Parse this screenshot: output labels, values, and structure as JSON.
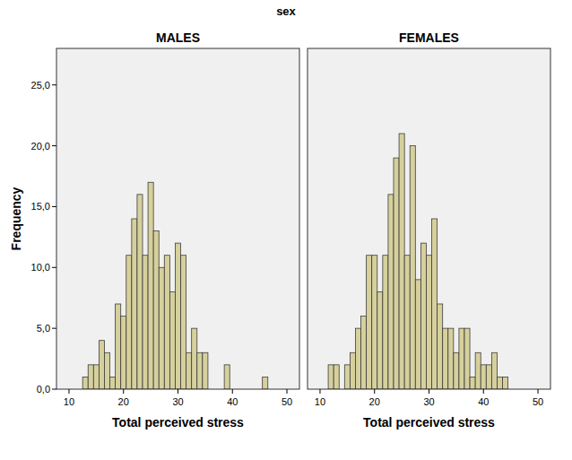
{
  "chart_data": {
    "type": "histogram",
    "title": "sex",
    "y_label": "Frequency",
    "x_label": "Total perceived stress",
    "color": "#d6d09c",
    "xlim": [
      7.7,
      52.3
    ],
    "ylim": [
      0,
      28
    ],
    "xticks": [
      10,
      20,
      30,
      40,
      50
    ],
    "yticks": [
      {
        "value": 0,
        "label": "0,0"
      },
      {
        "value": 5,
        "label": "5,0"
      },
      {
        "value": 10,
        "label": "10,0"
      },
      {
        "value": 15,
        "label": "15,0"
      },
      {
        "value": 20,
        "label": "20,0"
      },
      {
        "value": 25,
        "label": "25,0"
      }
    ],
    "panels": [
      {
        "name": "MALES",
        "bins": [
          12.5,
          13.5,
          14.5,
          15.5,
          16.5,
          17.5,
          18.5,
          19.5,
          20.5,
          21.5,
          22.5,
          23.5,
          24.5,
          25.5,
          26.5,
          27.5,
          28.5,
          29.5,
          30.5,
          31.5,
          32.5,
          33.5,
          34.5,
          35.5,
          36.5,
          37.5,
          38.5,
          39.5,
          40.5,
          41.5,
          42.5,
          43.5,
          44.5,
          45.5,
          46.5
        ],
        "counts": [
          1,
          2,
          2,
          4,
          3,
          1,
          7,
          6,
          11,
          14,
          16,
          11,
          17,
          13,
          10,
          11,
          8,
          12,
          11,
          3,
          5,
          3,
          3,
          0,
          0,
          0,
          2,
          0,
          0,
          0,
          0,
          0,
          0,
          1
        ]
      },
      {
        "name": "FEMALES",
        "bins": [
          11.5,
          12.5,
          13.5,
          14.5,
          15.5,
          16.5,
          17.5,
          18.5,
          19.5,
          20.5,
          21.5,
          22.5,
          23.5,
          24.5,
          25.5,
          26.5,
          27.5,
          28.5,
          29.5,
          30.5,
          31.5,
          32.5,
          33.5,
          34.5,
          35.5,
          36.5,
          37.5,
          38.5,
          39.5,
          40.5,
          41.5,
          42.5,
          43.5,
          44.5
        ],
        "counts": [
          2,
          2,
          0,
          2,
          3,
          5,
          6,
          11,
          11,
          8,
          11,
          16,
          19,
          21,
          11,
          20,
          9,
          12,
          11,
          14,
          7,
          5,
          5,
          3,
          5,
          5,
          1,
          3,
          2,
          2,
          3,
          1,
          1
        ]
      }
    ]
  }
}
